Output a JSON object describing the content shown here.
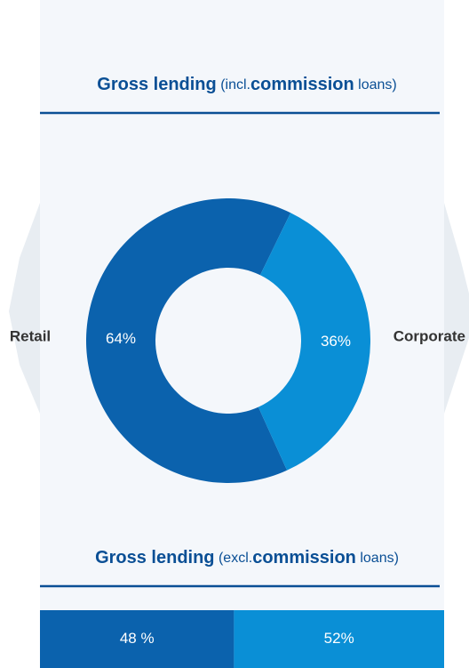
{
  "chart_data": [
    {
      "type": "pie",
      "title_parts": [
        {
          "text": "Gross lending",
          "bold": true
        },
        {
          "text": " (incl.",
          "bold": false
        },
        {
          "text": "commission",
          "bold": true
        },
        {
          "text": " loans)",
          "bold": false
        }
      ],
      "categories": [
        "Retail",
        "Corporate"
      ],
      "values": [
        64,
        36
      ],
      "value_labels": [
        "64%",
        "36%"
      ],
      "colors": [
        "#0b62ad",
        "#0a8fd6"
      ]
    },
    {
      "type": "stacked-bar",
      "title_parts": [
        {
          "text": "Gross lending",
          "bold": true
        },
        {
          "text": " (excl.",
          "bold": false
        },
        {
          "text": "commission",
          "bold": true
        },
        {
          "text": " loans)",
          "bold": false
        }
      ],
      "values": [
        48,
        52
      ],
      "value_labels": [
        "48 %",
        "52%"
      ],
      "colors": [
        "#0b62ad",
        "#0a8fd6"
      ]
    }
  ]
}
